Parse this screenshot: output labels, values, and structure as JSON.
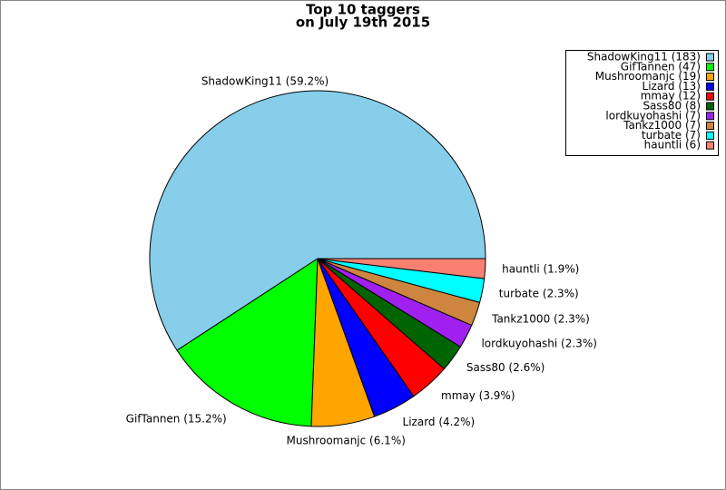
{
  "chart_data": {
    "type": "pie",
    "title": [
      "Top 10 taggers",
      "on July 19th 2015"
    ],
    "categories": [
      "ShadowKing11 (183)",
      "GifTannen (47)",
      "Mushroomanjc (19)",
      "Lizard (13)",
      "mmay (12)",
      "Sass80 (8)",
      "lordkuyohashi (7)",
      "Tankz1000 (7)",
      "turbate (7)",
      "hauntli (6)"
    ],
    "values": [
      59.2,
      15.2,
      6.1,
      4.2,
      3.9,
      2.6,
      2.3,
      2.3,
      2.3,
      1.9
    ],
    "value_labels": [
      "ShadowKing11 (59.2%)",
      "GifTannen (15.2%)",
      "Mushroomanjc (6.1%)",
      "Lizard (4.2%)",
      "mmay (3.9%)",
      "Sass80 (2.6%)",
      "lordkuyohashi (2.3%)",
      "Tankz1000 (2.3%)",
      "turbate (2.3%)",
      "hauntli (1.9%)"
    ],
    "colors": [
      "#87ceeb",
      "#00ff00",
      "#ffa500",
      "#0000ff",
      "#ff0000",
      "#006400",
      "#a020f0",
      "#cd853f",
      "#00ffff",
      "#fa8072"
    ],
    "legend": "upper right"
  }
}
